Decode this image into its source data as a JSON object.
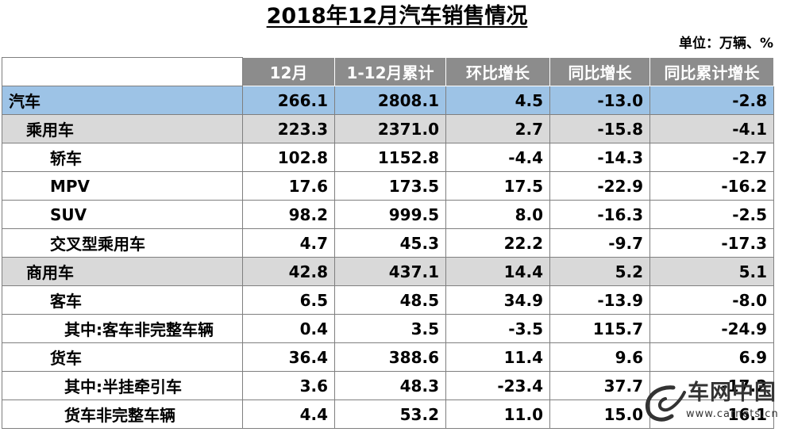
{
  "title": "2018年12月汽车销售情况",
  "unit": "单位：万辆、%",
  "columns": [
    "",
    "12月",
    "1-12月累计",
    "环比增长",
    "同比增长",
    "同比累计增长"
  ],
  "rows": [
    {
      "label": "汽车",
      "values": [
        "266.1",
        "2808.1",
        "4.5",
        "-13.0",
        "-2.8"
      ]
    },
    {
      "label": "乘用车",
      "values": [
        "223.3",
        "2371.0",
        "2.7",
        "-15.8",
        "-4.1"
      ]
    },
    {
      "label": "轿车",
      "values": [
        "102.8",
        "1152.8",
        "-4.4",
        "-14.3",
        "-2.7"
      ]
    },
    {
      "label": "MPV",
      "values": [
        "17.6",
        "173.5",
        "17.5",
        "-22.9",
        "-16.2"
      ]
    },
    {
      "label": "SUV",
      "values": [
        "98.2",
        "999.5",
        "8.0",
        "-16.3",
        "-2.5"
      ]
    },
    {
      "label": "交叉型乘用车",
      "values": [
        "4.7",
        "45.3",
        "22.2",
        "-9.7",
        "-17.3"
      ]
    },
    {
      "label": "商用车",
      "values": [
        "42.8",
        "437.1",
        "14.4",
        "5.2",
        "5.1"
      ]
    },
    {
      "label": "客车",
      "values": [
        "6.5",
        "48.5",
        "34.9",
        "-13.9",
        "-8.0"
      ]
    },
    {
      "label": "其中:客车非完整车辆",
      "values": [
        "0.4",
        "3.5",
        "-3.5",
        "115.7",
        "-24.9"
      ]
    },
    {
      "label": "货车",
      "values": [
        "36.4",
        "388.6",
        "11.4",
        "9.6",
        "6.9"
      ]
    },
    {
      "label": "其中:半挂牵引车",
      "values": [
        "3.6",
        "48.3",
        "-23.4",
        "37.7",
        "-17.2"
      ]
    },
    {
      "label": "货车非完整车辆",
      "values": [
        "4.4",
        "53.2",
        "11.0",
        "15.0",
        "16.1"
      ]
    }
  ],
  "watermark": {
    "text": "车网中国",
    "url": "www.carnets.cn",
    "logo": "cn-swoosh-logo",
    "color": "#333333"
  },
  "colors": {
    "header": "#8c8c8c",
    "total_row": "#9dc3e6",
    "subtotal_row": "#d9d9d9"
  }
}
